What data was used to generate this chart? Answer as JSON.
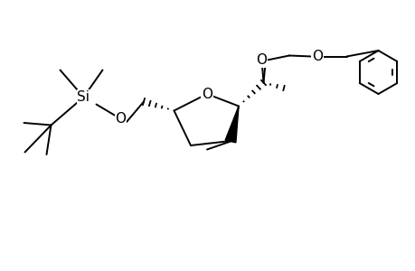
{
  "background": "#ffffff",
  "line_color": "#000000",
  "line_width": 1.4,
  "figsize": [
    4.6,
    3.0
  ],
  "dpi": 100,
  "xlim": [
    0,
    9.2
  ],
  "ylim": [
    0,
    6.0
  ]
}
